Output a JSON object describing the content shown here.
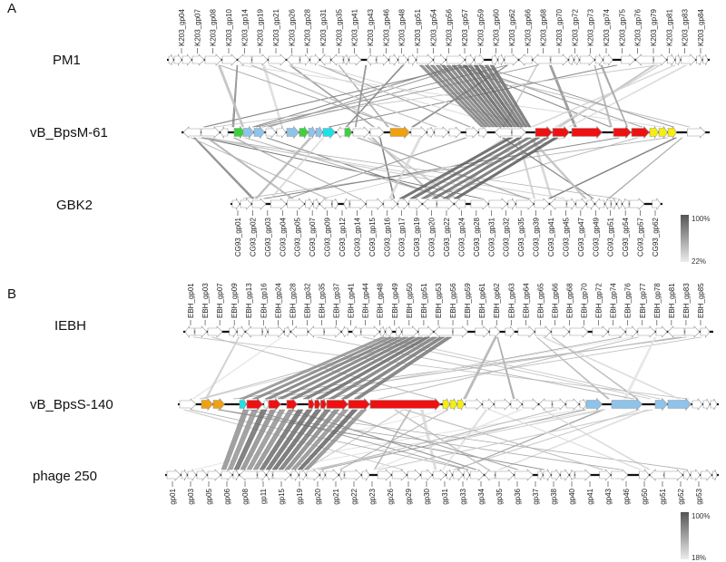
{
  "panels": [
    {
      "letter": "A",
      "scale": {
        "max": "100%",
        "min": "22%"
      },
      "tracks": [
        {
          "name": "PM1",
          "label_pos": "top",
          "gene_labels": [
            "K203_gp04",
            "K203_gp07",
            "K203_gp08",
            "K203_gp10",
            "K203_gp14",
            "K203_gp19",
            "K203_gp21",
            "K203_gp26",
            "K203_gp28",
            "K203_gp31",
            "K203_gp35",
            "K203_gp41",
            "K203_gp43",
            "K203_gp46",
            "K203_gp48",
            "K203_gp51",
            "K203_gp54",
            "K203_gp56",
            "K203_gp57",
            "K203_gp59",
            "K203_gp60",
            "K203_gp62",
            "K203_gp66",
            "K203_gp68",
            "K203_gp70",
            "K203_gp72",
            "K203_gp73",
            "K203_gp74",
            "K203_gp75",
            "K203_gp76",
            "K203_gp79",
            "K203_gp81",
            "K203_gp83",
            "K203_gp84"
          ]
        },
        {
          "name": "vB_BpsM-61",
          "label_pos": "none",
          "gene_labels": []
        },
        {
          "name": "GBK2",
          "label_pos": "bottom",
          "gene_labels": [
            "CG93_gp01",
            "CG93_gp02",
            "CG93_gp03",
            "CG93_gp04",
            "CG93_gp05",
            "CG93_gp07",
            "CG93_gp09",
            "CG93_gp12",
            "CG93_gp14",
            "CG93_gp15",
            "CG93_gp16",
            "CG93_gp17",
            "CG93_gp19",
            "CG93_gp20",
            "CG93_gp22",
            "CG93_gp24",
            "CG93_gp28",
            "CG93_gp31",
            "CG93_gp32",
            "CG93_gp35",
            "CG93_gp39",
            "CG93_gp41",
            "CG93_gp45",
            "CG93_gp47",
            "CG93_gp49",
            "CG93_gp51",
            "CG93_gp54",
            "CG93_gp57",
            "CG93_gp62"
          ]
        }
      ]
    },
    {
      "letter": "B",
      "scale": {
        "max": "100%",
        "min": "18%"
      },
      "tracks": [
        {
          "name": "IEBH",
          "label_pos": "top",
          "gene_labels": [
            "EBH_gp01",
            "EBH_gp03",
            "EBH_gp07",
            "EBH_gp09",
            "EBH_gp13",
            "EBH_gp16",
            "EBH_gp24",
            "EBH_gp28",
            "EBH_gp32",
            "EBH_gp35",
            "EBH_gp37",
            "EBH_gp41",
            "EBH_gp44",
            "EBH_gp48",
            "EBH_gp49",
            "EBH_gp50",
            "EBH_gp51",
            "EBH_gp53",
            "EBH_gp56",
            "EBH_gp59",
            "EBH_gp61",
            "EBH_gp62",
            "EBH_gp63",
            "EBH_gp64",
            "EBH_gp65",
            "EBH_gp66",
            "EBH_gp68",
            "EBH_gp70",
            "EBH_gp72",
            "EBH_gp74",
            "EBH_gp76",
            "EBH_gp77",
            "EBH_gp78",
            "EBH_gp81",
            "EBH_gp83",
            "EBH_gp85"
          ]
        },
        {
          "name": "vB_BpsS-140",
          "label_pos": "none",
          "gene_labels": []
        },
        {
          "name": "phage 250",
          "label_pos": "bottom",
          "gene_labels": [
            "gp01",
            "gp03",
            "gp05",
            "gp06",
            "gp08",
            "gp11",
            "gp15",
            "gp19",
            "gp20",
            "gp21",
            "gp22",
            "gp23",
            "gp26",
            "gp29",
            "gp30",
            "gp31",
            "gp33",
            "gp34",
            "gp35",
            "gp36",
            "gp37",
            "gp38",
            "gp40",
            "gp41",
            "gp43",
            "gp46",
            "gp50",
            "gp51",
            "gp52",
            "gp53"
          ]
        }
      ]
    }
  ],
  "legend_colors": {
    "default": "#ffffff",
    "red": "#ee1111",
    "orange": "#f0a010",
    "yellow": "#f5ee10",
    "lightblue": "#8ec3ea",
    "cyan": "#1ee0e8",
    "green": "#3cd23c"
  }
}
